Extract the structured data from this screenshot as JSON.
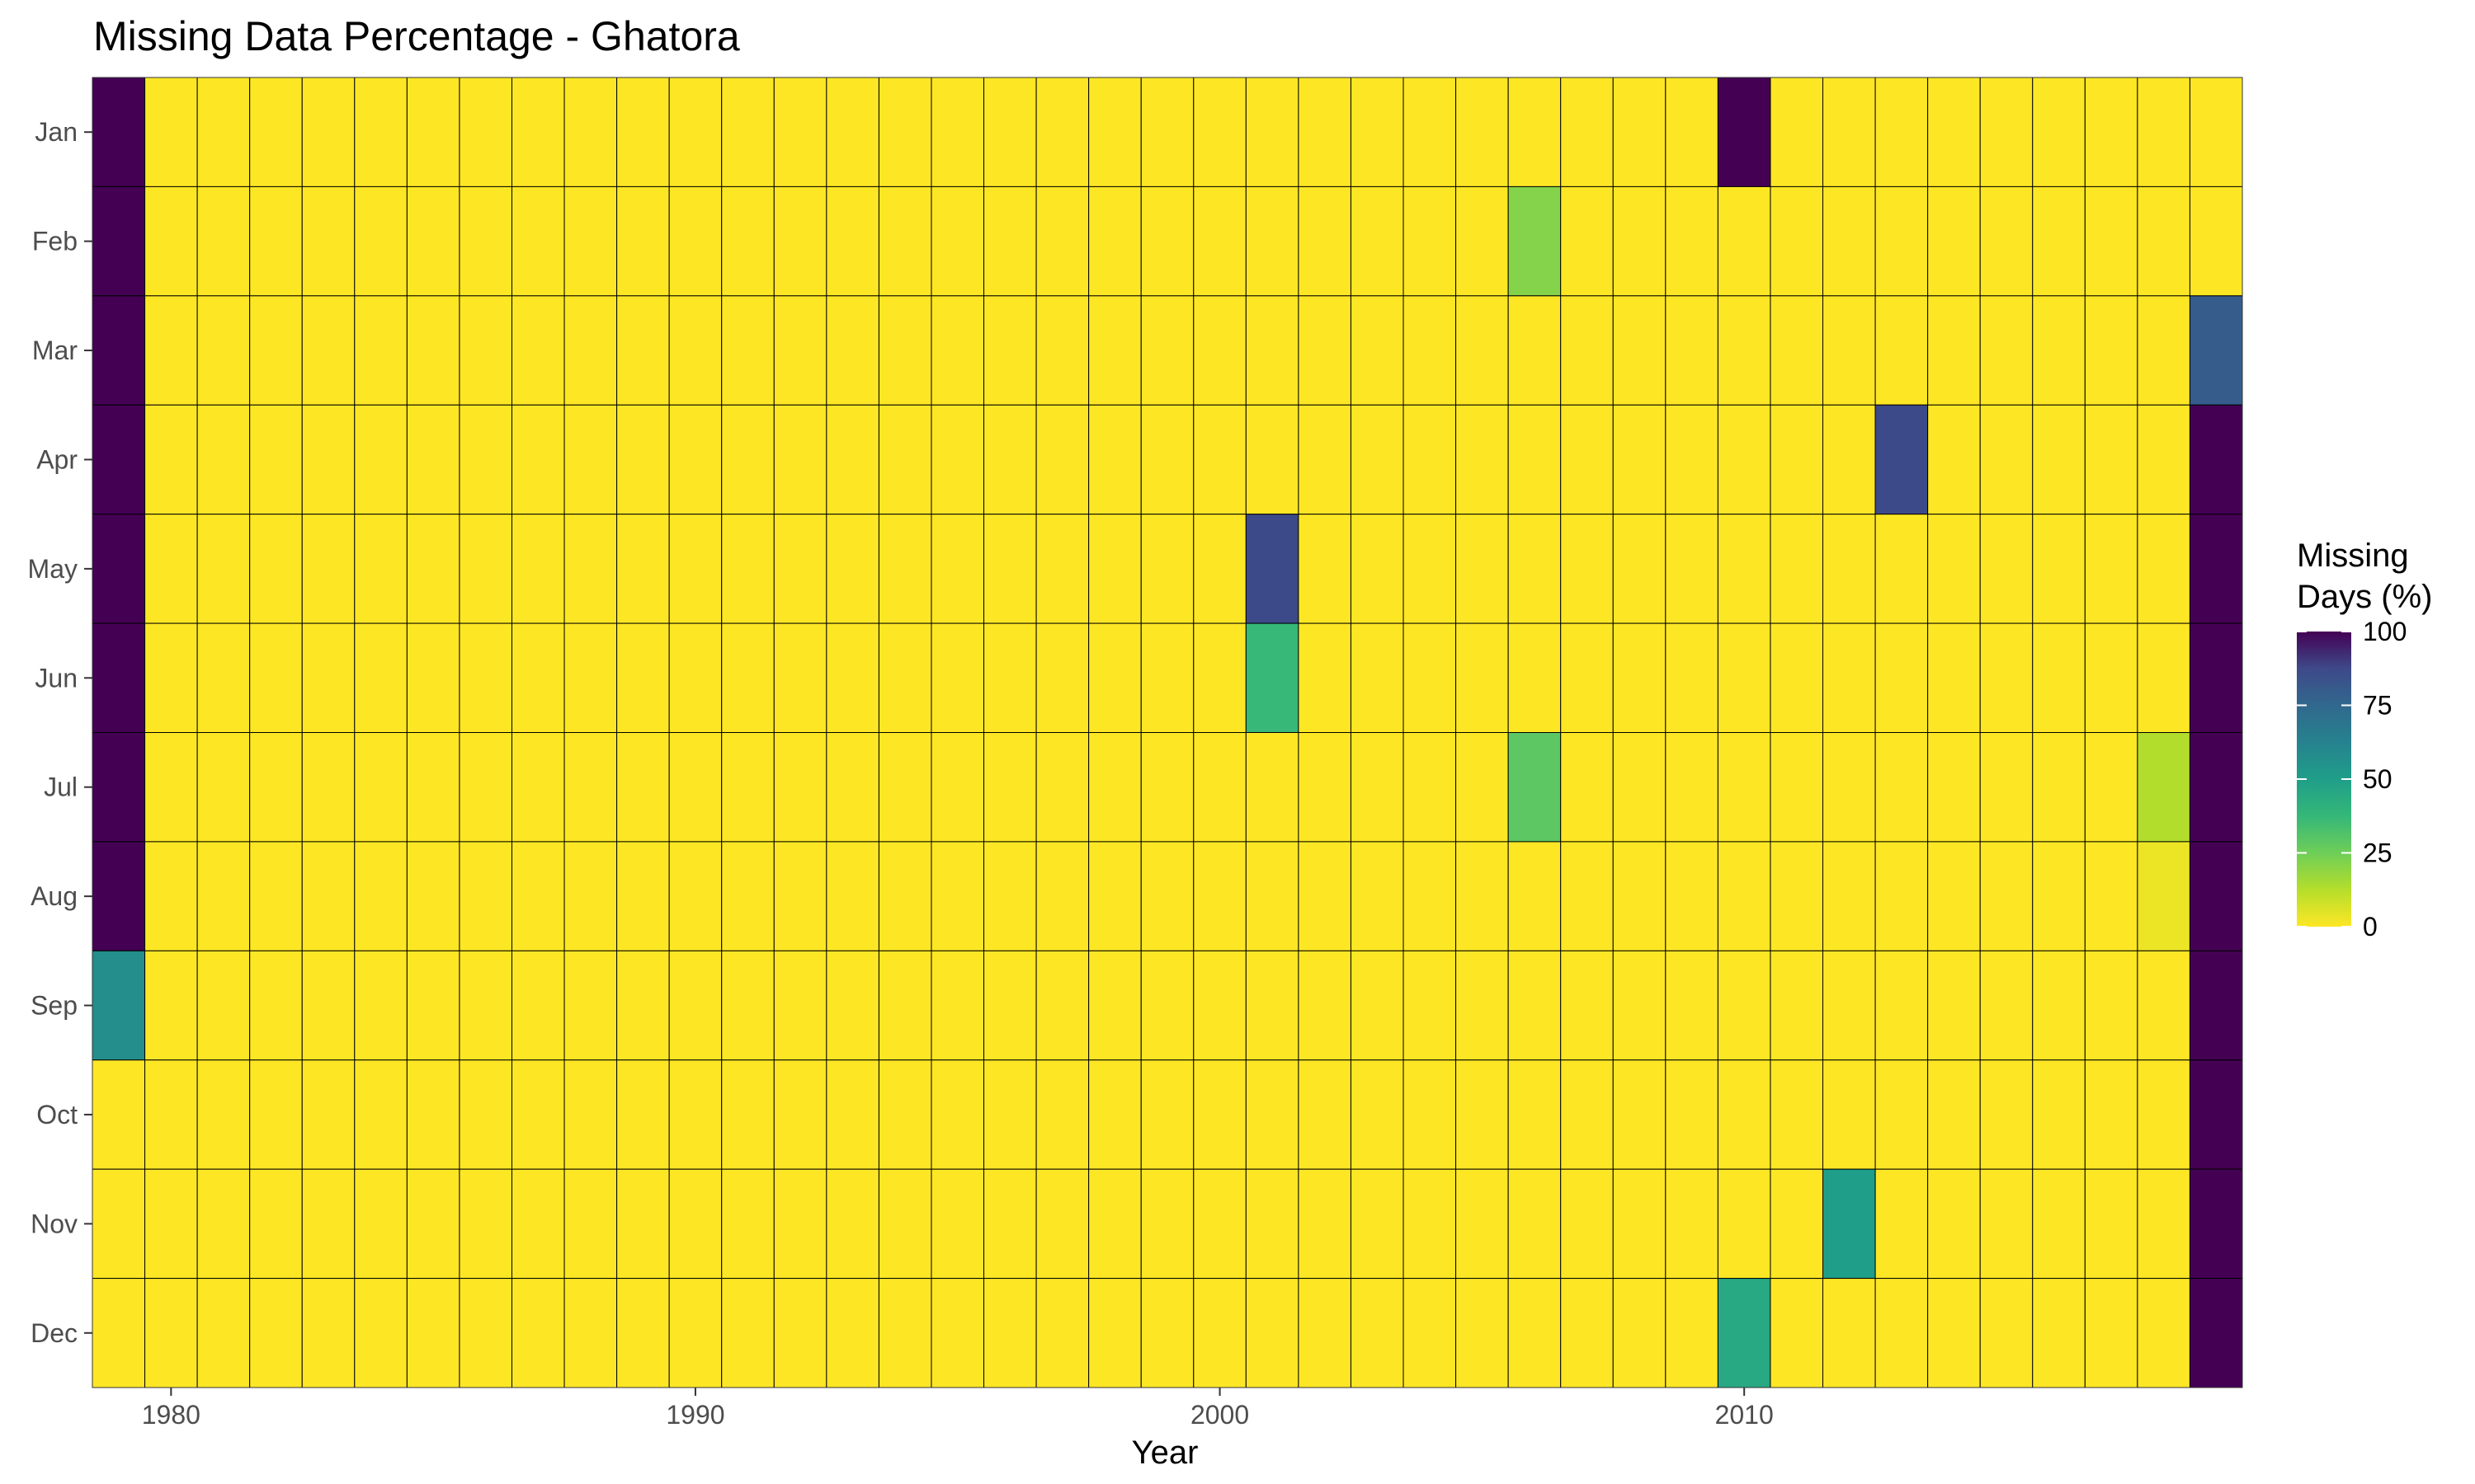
{
  "chart_data": {
    "type": "heatmap",
    "title": "Missing Data Percentage - Ghatora",
    "xlabel": "Year",
    "ylabel": "",
    "years": [
      1979,
      1980,
      1981,
      1982,
      1983,
      1984,
      1985,
      1986,
      1987,
      1988,
      1989,
      1990,
      1991,
      1992,
      1993,
      1994,
      1995,
      1996,
      1997,
      1998,
      1999,
      2000,
      2001,
      2002,
      2003,
      2004,
      2005,
      2006,
      2007,
      2008,
      2009,
      2010,
      2011,
      2012,
      2013,
      2014,
      2015,
      2016,
      2017,
      2018,
      2019
    ],
    "x_tick_values": [
      1980,
      1990,
      2000,
      2010
    ],
    "x_tick_labels": [
      "1980",
      "1990",
      "2000",
      "2010"
    ],
    "months": [
      "Jan",
      "Feb",
      "Mar",
      "Apr",
      "May",
      "Jun",
      "Jul",
      "Aug",
      "Sep",
      "Oct",
      "Nov",
      "Dec"
    ],
    "default_value": 0,
    "nonzero_cells": [
      {
        "year": 1979,
        "month": "Jan",
        "value": 100
      },
      {
        "year": 1979,
        "month": "Feb",
        "value": 100
      },
      {
        "year": 1979,
        "month": "Mar",
        "value": 100
      },
      {
        "year": 1979,
        "month": "Apr",
        "value": 100
      },
      {
        "year": 1979,
        "month": "May",
        "value": 100
      },
      {
        "year": 1979,
        "month": "Jun",
        "value": 100
      },
      {
        "year": 1979,
        "month": "Jul",
        "value": 100
      },
      {
        "year": 1979,
        "month": "Aug",
        "value": 100
      },
      {
        "year": 1979,
        "month": "Sep",
        "value": 57
      },
      {
        "year": 2001,
        "month": "May",
        "value": 87
      },
      {
        "year": 2001,
        "month": "Jun",
        "value": 37
      },
      {
        "year": 2006,
        "month": "Feb",
        "value": 21
      },
      {
        "year": 2006,
        "month": "Jul",
        "value": 29
      },
      {
        "year": 2010,
        "month": "Jan",
        "value": 100
      },
      {
        "year": 2010,
        "month": "Dec",
        "value": 45
      },
      {
        "year": 2012,
        "month": "Nov",
        "value": 50
      },
      {
        "year": 2013,
        "month": "Apr",
        "value": 87
      },
      {
        "year": 2018,
        "month": "Jul",
        "value": 13
      },
      {
        "year": 2018,
        "month": "Aug",
        "value": 3
      },
      {
        "year": 2019,
        "month": "Mar",
        "value": 80
      },
      {
        "year": 2019,
        "month": "Apr",
        "value": 100
      },
      {
        "year": 2019,
        "month": "May",
        "value": 100
      },
      {
        "year": 2019,
        "month": "Jun",
        "value": 100
      },
      {
        "year": 2019,
        "month": "Jul",
        "value": 100
      },
      {
        "year": 2019,
        "month": "Aug",
        "value": 100
      },
      {
        "year": 2019,
        "month": "Sep",
        "value": 100
      },
      {
        "year": 2019,
        "month": "Oct",
        "value": 100
      },
      {
        "year": 2019,
        "month": "Nov",
        "value": 100
      },
      {
        "year": 2019,
        "month": "Dec",
        "value": 100
      }
    ],
    "color_scale": {
      "name": "viridis (reversed)",
      "min": 0,
      "max": 100,
      "stops": [
        {
          "value": 0,
          "color": "#fde725"
        },
        {
          "value": 12.5,
          "color": "#b5de2b"
        },
        {
          "value": 25,
          "color": "#6ece58"
        },
        {
          "value": 37.5,
          "color": "#35b779"
        },
        {
          "value": 50,
          "color": "#1f9e89"
        },
        {
          "value": 62.5,
          "color": "#26828e"
        },
        {
          "value": 75,
          "color": "#31688e"
        },
        {
          "value": 87.5,
          "color": "#3e4989"
        },
        {
          "value": 100,
          "color": "#440154"
        }
      ]
    },
    "legend": {
      "title_line1": "Missing",
      "title_line2": "Days (%)",
      "breaks": [
        100,
        75,
        50,
        25,
        0
      ],
      "position": "right"
    },
    "grid": true,
    "cell_border_color": "#000000"
  }
}
